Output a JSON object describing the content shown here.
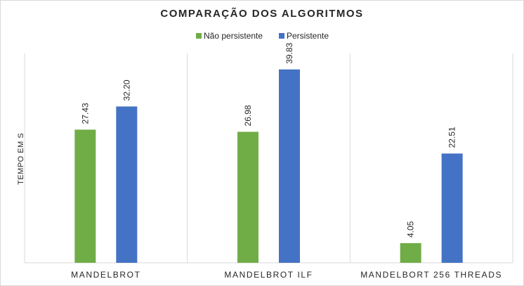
{
  "chart_data": {
    "type": "bar",
    "title": "COMPARAÇÃO DOS ALGORITMOS",
    "ylabel": "TEMPO EM S",
    "xlabel": "",
    "categories": [
      "MANDELBROT",
      "MANDELBROT ILF",
      "MANDELBORT 256 THREADS"
    ],
    "series": [
      {
        "name": "Não persistente",
        "color": "#70ad47",
        "values": [
          27.43,
          26.98,
          4.05
        ],
        "labels": [
          "27.43",
          "26.98",
          "4.05"
        ]
      },
      {
        "name": "Persistente",
        "color": "#4472c4",
        "values": [
          32.2,
          39.83,
          22.51
        ],
        "labels": [
          "32.20",
          "39.83",
          "22.51"
        ]
      }
    ],
    "ylim": [
      0,
      44
    ],
    "legend_position": "top-center",
    "grid": false
  }
}
